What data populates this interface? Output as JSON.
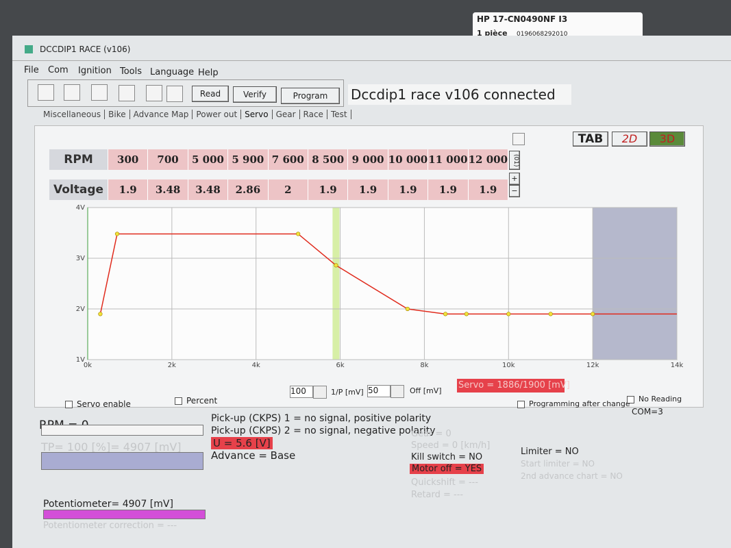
{
  "sticker": {
    "model": "HP 17-CN0490NF I3",
    "quantity": "1 pièce",
    "code": "0196068292010"
  },
  "window": {
    "title": "DCCDIP1 RACE (v106)"
  },
  "menu": [
    "File",
    "Com",
    "Ignition",
    "Tools",
    "Language",
    "Help"
  ],
  "toolbar": {
    "buttons": [
      "Read",
      "Verify",
      "Program"
    ],
    "status": "Dccdip1 race v106 connected"
  },
  "tabs": [
    "Miscellaneous",
    "Bike",
    "Advance Map",
    "Power out",
    "Servo",
    "Gear",
    "Race",
    "Test"
  ],
  "view_buttons": [
    "TAB",
    "2D",
    "3D"
  ],
  "table": {
    "row_labels": [
      "RPM",
      "Voltage"
    ],
    "side_buttons": [
      "(01)",
      "+",
      "−"
    ]
  },
  "chart_data": {
    "type": "line",
    "x": [
      300,
      700,
      {
        "value": 5000,
        "label": "5 000"
      },
      {
        "value": 5900,
        "label": "5 900"
      },
      {
        "value": 7600,
        "label": "7 600"
      },
      {
        "value": 8500,
        "label": "8 500"
      },
      {
        "value": 9000,
        "label": "9 000"
      },
      {
        "value": 10000,
        "label": "10 000"
      },
      {
        "value": 11000,
        "label": "11 000"
      },
      {
        "value": 12000,
        "label": "12 000"
      }
    ],
    "series": [
      {
        "color": "#e02a1c",
        "marker_color": "#f2e23a",
        "values": [
          1.9,
          3.48,
          3.48,
          2.86,
          2,
          1.9,
          1.9,
          1.9,
          1.9,
          1.9
        ]
      }
    ],
    "xlim": [
      0,
      14000
    ],
    "ylim": [
      1,
      4
    ],
    "xticks": [
      {
        "value": 0,
        "label": "0k"
      },
      {
        "value": 2000,
        "label": "2k"
      },
      {
        "value": 4000,
        "label": "4k"
      },
      {
        "value": 6000,
        "label": "6k"
      },
      {
        "value": 8000,
        "label": "8k"
      },
      {
        "value": 10000,
        "label": "10k"
      },
      {
        "value": 12000,
        "label": "12k"
      },
      {
        "value": 14000,
        "label": "14k"
      }
    ],
    "yticks": [
      {
        "value": 1,
        "label": "1V"
      },
      {
        "value": 2,
        "label": "2V"
      },
      {
        "value": 3,
        "label": "3V"
      },
      {
        "value": 4,
        "label": "4V"
      }
    ],
    "grid": true
  },
  "controls": {
    "pulse_value": "100",
    "pulse_label": "1/P [mV]",
    "offset_value": "50",
    "offset_label": "Off [mV]",
    "servo": "Servo = 1886/1900 [mV]",
    "servo_enable": "Servo enable",
    "percent": "Percent",
    "programming_after_change": "Programming after change",
    "no_reading": "No Reading",
    "com": "COM=3"
  },
  "status": {
    "rpm": "RPM = 0",
    "tp": "TP= 100 [%]= 4907 [mV]",
    "pickup1": "Pick-up (CKPS) 1 = no signal, positive polarity",
    "pickup2": "Pick-up (CKPS) 2 = no signal, negative polarity",
    "voltage": "U = 5.6 [V]",
    "advance": "Advance = Base",
    "gear": "Gear = 0",
    "speed": "Speed = 0 [km/h]",
    "kill_switch": "Kill switch = NO",
    "motor_off": "Motor off = YES",
    "quickshift": "Quickshift = ---",
    "retard": "Retard = ---",
    "limiter": "Limiter = NO",
    "start_limiter": "Start limiter = NO",
    "second_advance": "2nd advance chart = NO",
    "potentiometer": "Potentiometer= 4907 [mV]",
    "potentiometer_correction": "Potentiometer correction = ---"
  }
}
